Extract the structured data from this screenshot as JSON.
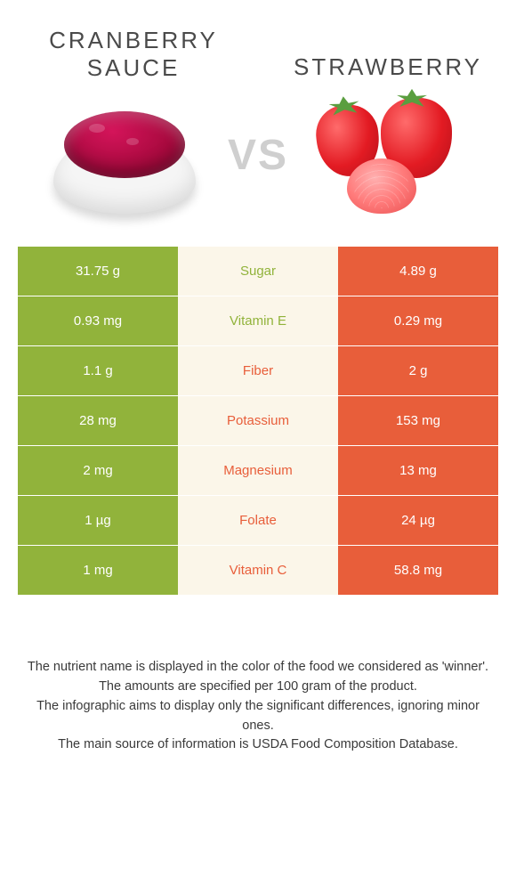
{
  "colors": {
    "left": "#91b33b",
    "right": "#e85e3a",
    "mid_bg": "#fbf6e9",
    "text_dark": "#3a3a3a",
    "vs": "#cfcfcf"
  },
  "header": {
    "left_title": "CRANBERRY SAUCE",
    "right_title": "STRAWBERRY",
    "vs": "VS"
  },
  "rows": [
    {
      "left": "31.75 g",
      "label": "Sugar",
      "right": "4.89 g",
      "winner": "left"
    },
    {
      "left": "0.93 mg",
      "label": "Vitamin E",
      "right": "0.29 mg",
      "winner": "left"
    },
    {
      "left": "1.1 g",
      "label": "Fiber",
      "right": "2 g",
      "winner": "right"
    },
    {
      "left": "28 mg",
      "label": "Potassium",
      "right": "153 mg",
      "winner": "right"
    },
    {
      "left": "2 mg",
      "label": "Magnesium",
      "right": "13 mg",
      "winner": "right"
    },
    {
      "left": "1 µg",
      "label": "Folate",
      "right": "24 µg",
      "winner": "right"
    },
    {
      "left": "1 mg",
      "label": "Vitamin C",
      "right": "58.8 mg",
      "winner": "right"
    }
  ],
  "footer": {
    "line1": "The nutrient name is displayed in the color of the food we considered as 'winner'.",
    "line2": "The amounts are specified per 100 gram of the product.",
    "line3": "The infographic aims to display only the significant differences, ignoring minor ones.",
    "line4": "The main source of information is USDA Food Composition Database."
  }
}
